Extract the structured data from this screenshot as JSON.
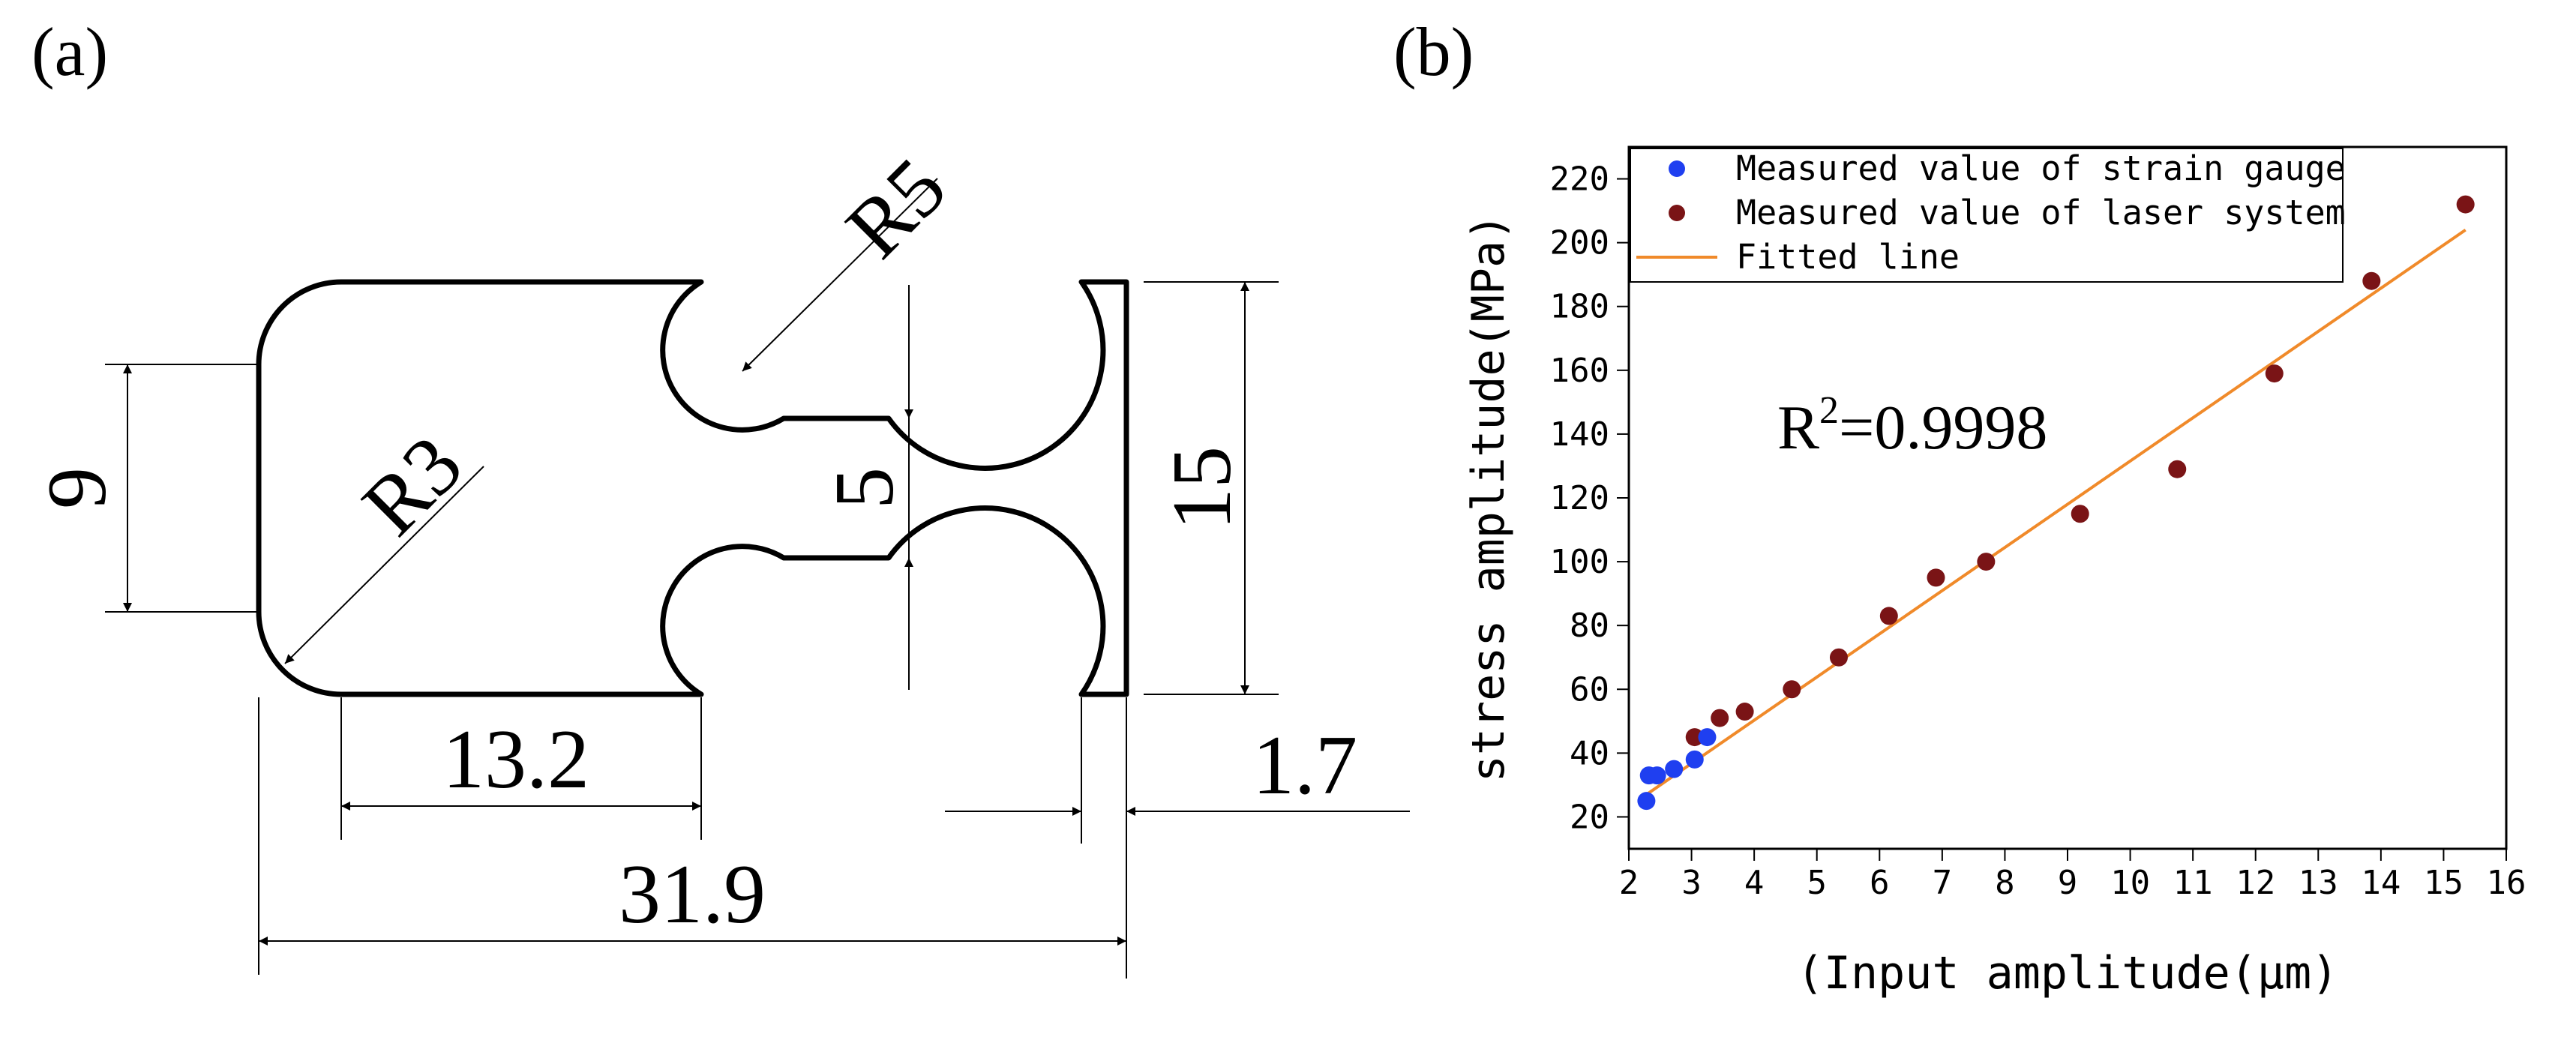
{
  "panel_a": {
    "label": "(a)",
    "dims": {
      "r5": "R5",
      "r3": "R3",
      "nine": "9",
      "five": "5",
      "fifteen": "15",
      "d13_2": "13.2",
      "d1_7": "1.7",
      "d31_9": "31.9"
    }
  },
  "panel_b": {
    "label": "(b)",
    "r2_base": "R",
    "r2_sup": "2",
    "r2_rest": "=0.9998"
  },
  "chart_data": {
    "type": "scatter",
    "xlabel": "(Input amplitude(μm)",
    "ylabel": "stress amplitude(MPa)",
    "xlim": [
      2,
      16
    ],
    "ylim": [
      10,
      230
    ],
    "xticks": [
      "2",
      "3",
      "4",
      "5",
      "6",
      "7",
      "8",
      "9",
      "10",
      "11",
      "12",
      "13",
      "14",
      "15",
      "16"
    ],
    "yticks": [
      "20",
      "40",
      "60",
      "80",
      "100",
      "120",
      "140",
      "160",
      "180",
      "200",
      "220"
    ],
    "legend_position": "top-left",
    "series": [
      {
        "name": "Measured value of strain gauge",
        "color": "#1f3ff0",
        "points": [
          [
            2.28,
            25
          ],
          [
            2.32,
            33
          ],
          [
            2.45,
            33
          ],
          [
            2.72,
            35
          ],
          [
            3.05,
            38
          ],
          [
            3.25,
            45
          ]
        ]
      },
      {
        "name": "Measured value of laser system",
        "color": "#7a1416",
        "points": [
          [
            3.05,
            45
          ],
          [
            3.45,
            51
          ],
          [
            3.85,
            53
          ],
          [
            4.6,
            60
          ],
          [
            5.35,
            70
          ],
          [
            6.15,
            83
          ],
          [
            6.9,
            95
          ],
          [
            7.7,
            100
          ],
          [
            9.2,
            115
          ],
          [
            10.75,
            129
          ],
          [
            12.3,
            159
          ],
          [
            13.85,
            188
          ],
          [
            15.35,
            212
          ]
        ]
      },
      {
        "name": "Fitted line",
        "color": "#f08a2a",
        "line": [
          [
            2.28,
            27
          ],
          [
            15.35,
            204
          ]
        ]
      }
    ],
    "annotation": "R2=0.9998"
  }
}
